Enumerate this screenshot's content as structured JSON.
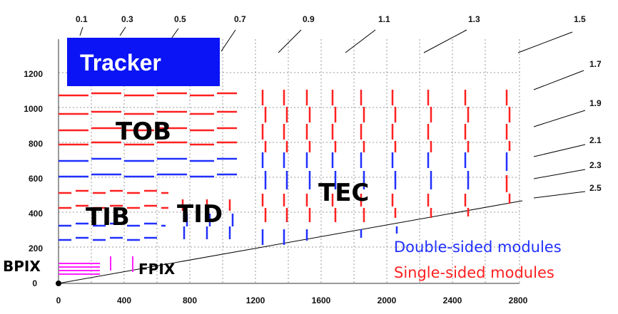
{
  "title": "Tracker",
  "colors": {
    "title_box": "#0a14f5",
    "single_sided": "#ff2020",
    "double_sided": "#2030ff",
    "pixel": "#ff20ff",
    "grid": "#888888"
  },
  "axes": {
    "x_ticks": [
      "0",
      "400",
      "800",
      "1200",
      "1600",
      "2000",
      "2400",
      "2800"
    ],
    "y_ticks": [
      "0",
      "200",
      "400",
      "600",
      "800",
      "1000",
      "1200"
    ]
  },
  "eta_labels": [
    "0.1",
    "0.3",
    "0.5",
    "0.7",
    "0.9",
    "1.1",
    "1.3",
    "1.5",
    "1.7",
    "1.9",
    "2.1",
    "2.3",
    "2.5"
  ],
  "regions": {
    "tob": "TOB",
    "tib": "TIB",
    "tid": "TID",
    "tec": "TEC",
    "bpix": "BPIX",
    "fpix": "FPIX"
  },
  "legend": {
    "double": "Double-sided modules",
    "single": "Single-sided modules"
  }
}
